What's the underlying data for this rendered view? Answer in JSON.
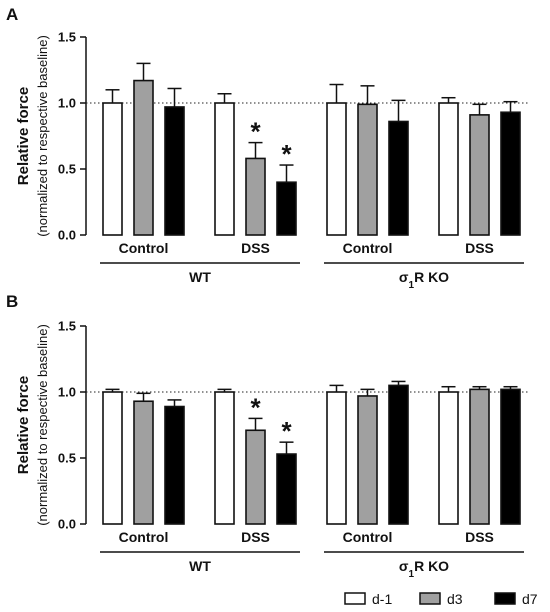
{
  "colors": {
    "d-1": "#ffffff",
    "d3": "#a0a0a0",
    "d7": "#000000"
  },
  "legend": {
    "items": [
      "d-1",
      "d3",
      "d7"
    ],
    "placement": "bottom-right"
  },
  "chart_data": [
    {
      "panel": "A",
      "type": "bar",
      "ylabel": "Relative force",
      "ylabel_sub": "(normalized to respective baseline)",
      "ylim": [
        0,
        1.5
      ],
      "yticks": [
        "0.0",
        "0.5",
        "1.0",
        "1.5"
      ],
      "reference_line": 1.0,
      "categories": [
        "Control",
        "DSS",
        "Control",
        "DSS"
      ],
      "groups": [
        {
          "label": "WT",
          "categories": [
            0,
            1
          ]
        },
        {
          "label": "σ1R KO",
          "label_base": "σ",
          "label_sub": "1",
          "label_rest": "R KO",
          "categories": [
            2,
            3
          ]
        }
      ],
      "series": [
        {
          "name": "d-1",
          "values": [
            1.0,
            1.0,
            1.0,
            1.0
          ],
          "errors": [
            0.1,
            0.07,
            0.14,
            0.04
          ]
        },
        {
          "name": "d3",
          "values": [
            1.17,
            0.58,
            0.99,
            0.91
          ],
          "errors": [
            0.13,
            0.12,
            0.14,
            0.08
          ]
        },
        {
          "name": "d7",
          "values": [
            0.97,
            0.4,
            0.86,
            0.93
          ],
          "errors": [
            0.14,
            0.13,
            0.16,
            0.08
          ]
        }
      ],
      "annotations": [
        {
          "text": "*",
          "category": 1,
          "series": "d3"
        },
        {
          "text": "*",
          "category": 1,
          "series": "d7"
        }
      ]
    },
    {
      "panel": "B",
      "type": "bar",
      "ylabel": "Relative force",
      "ylabel_sub": "(normalized to respective baseline)",
      "ylim": [
        0,
        1.5
      ],
      "yticks": [
        "0.0",
        "0.5",
        "1.0",
        "1.5"
      ],
      "reference_line": 1.0,
      "categories": [
        "Control",
        "DSS",
        "Control",
        "DSS"
      ],
      "groups": [
        {
          "label": "WT",
          "categories": [
            0,
            1
          ]
        },
        {
          "label": "σ1R KO",
          "label_base": "σ",
          "label_sub": "1",
          "label_rest": "R KO",
          "categories": [
            2,
            3
          ]
        }
      ],
      "series": [
        {
          "name": "d-1",
          "values": [
            1.0,
            1.0,
            1.0,
            1.0
          ],
          "errors": [
            0.02,
            0.02,
            0.05,
            0.04
          ]
        },
        {
          "name": "d3",
          "values": [
            0.93,
            0.71,
            0.97,
            1.02
          ],
          "errors": [
            0.06,
            0.09,
            0.05,
            0.02
          ]
        },
        {
          "name": "d7",
          "values": [
            0.89,
            0.53,
            1.05,
            1.02
          ],
          "errors": [
            0.05,
            0.09,
            0.03,
            0.02
          ]
        }
      ],
      "annotations": [
        {
          "text": "*",
          "category": 1,
          "series": "d3"
        },
        {
          "text": "*",
          "category": 1,
          "series": "d7"
        }
      ]
    }
  ]
}
